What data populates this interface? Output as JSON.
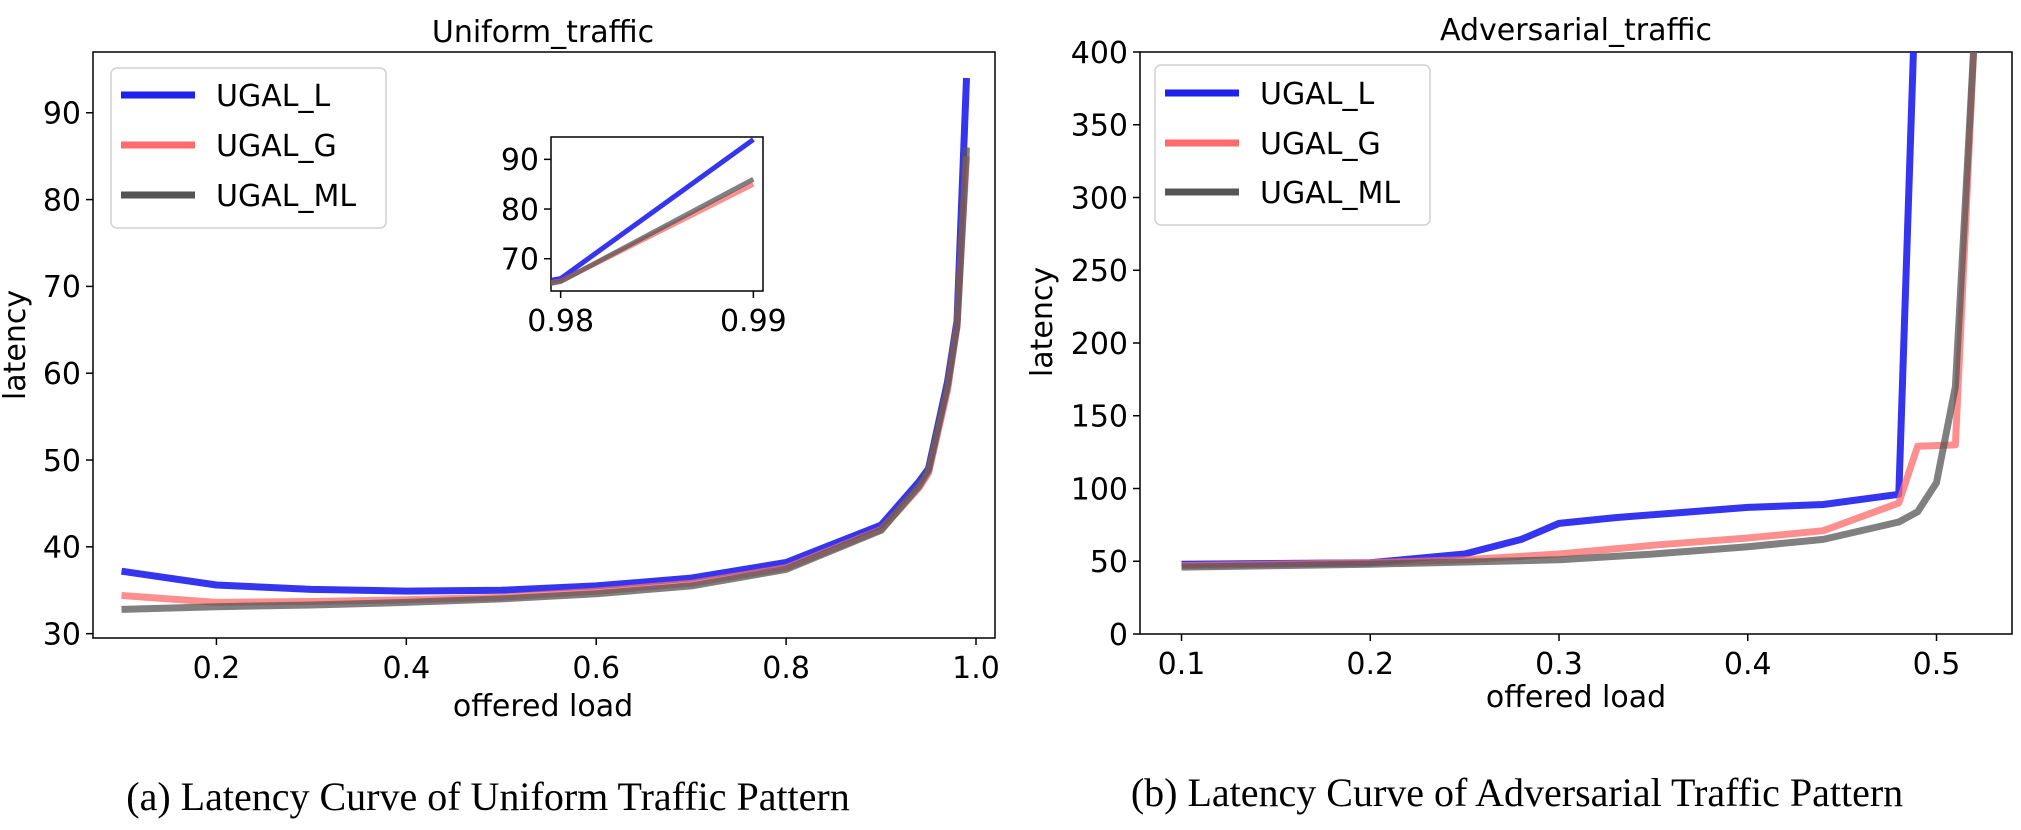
{
  "colors": {
    "UGAL_L": "#1f1fee",
    "UGAL_G": "#ff6a6a",
    "UGAL_ML": "#555555"
  },
  "captions": {
    "a": "(a) Latency Curve of Uniform Traffic Pattern",
    "b": "(b) Latency Curve of Adversarial Traffic Pattern"
  },
  "chart_data": [
    {
      "type": "line",
      "title": "Uniform_traffic",
      "xlabel": "offered load",
      "ylabel": "latency",
      "xlim": [
        0.07,
        1.02
      ],
      "ylim": [
        29.5,
        97
      ],
      "xticks": [
        0.2,
        0.4,
        0.6,
        0.8,
        1.0
      ],
      "xtick_labels": [
        "0.2",
        "0.4",
        "0.6",
        "0.8",
        "1.0"
      ],
      "yticks": [
        30,
        40,
        50,
        60,
        70,
        80,
        90
      ],
      "ytick_labels": [
        "30",
        "40",
        "50",
        "60",
        "70",
        "80",
        "90"
      ],
      "legend": "top-left",
      "series": [
        {
          "name": "UGAL_L",
          "x": [
            0.1,
            0.2,
            0.3,
            0.4,
            0.5,
            0.6,
            0.7,
            0.8,
            0.9,
            0.94,
            0.95,
            0.97,
            0.98,
            0.99
          ],
          "y": [
            37.2,
            35.6,
            35.1,
            34.9,
            35.0,
            35.5,
            36.4,
            38.2,
            42.5,
            47.5,
            49.0,
            59.0,
            66.0,
            94.0
          ]
        },
        {
          "name": "UGAL_G",
          "x": [
            0.1,
            0.2,
            0.3,
            0.4,
            0.5,
            0.6,
            0.7,
            0.8,
            0.9,
            0.94,
            0.95,
            0.97,
            0.98,
            0.99
          ],
          "y": [
            34.4,
            33.6,
            33.7,
            33.9,
            34.2,
            34.9,
            35.8,
            37.6,
            42.0,
            46.8,
            48.5,
            58.0,
            65.5,
            85.0
          ]
        },
        {
          "name": "UGAL_ML",
          "x": [
            0.1,
            0.2,
            0.3,
            0.4,
            0.5,
            0.6,
            0.7,
            0.8,
            0.9,
            0.94,
            0.95,
            0.97,
            0.98,
            0.99
          ],
          "y": [
            32.8,
            33.1,
            33.3,
            33.6,
            34.0,
            34.6,
            35.5,
            37.4,
            41.9,
            47.0,
            48.8,
            58.5,
            65.4,
            86.0
          ]
        }
      ],
      "inset": {
        "xlim": [
          0.9795,
          0.9905
        ],
        "ylim": [
          63.5,
          94.5
        ],
        "xticks": [
          0.98,
          0.99
        ],
        "xtick_labels": [
          "0.98",
          "0.99"
        ],
        "yticks": [
          70,
          80,
          90
        ],
        "ytick_labels": [
          "70",
          "80",
          "90"
        ]
      }
    },
    {
      "type": "line",
      "title": "Adversarial_traffic",
      "xlabel": "offered load",
      "ylabel": "latency",
      "xlim": [
        0.078,
        0.54
      ],
      "ylim": [
        0,
        400
      ],
      "xticks": [
        0.1,
        0.2,
        0.3,
        0.4,
        0.5
      ],
      "xtick_labels": [
        "0.1",
        "0.2",
        "0.3",
        "0.4",
        "0.5"
      ],
      "yticks": [
        0,
        50,
        100,
        150,
        200,
        250,
        300,
        350,
        400
      ],
      "ytick_labels": [
        "0",
        "50",
        "100",
        "150",
        "200",
        "250",
        "300",
        "350",
        "400"
      ],
      "legend": "top-left",
      "series": [
        {
          "name": "UGAL_L",
          "x": [
            0.1,
            0.2,
            0.25,
            0.28,
            0.3,
            0.33,
            0.36,
            0.4,
            0.44,
            0.48,
            0.488
          ],
          "y": [
            48,
            49,
            55,
            65,
            76,
            80,
            83,
            87,
            89,
            96,
            410
          ]
        },
        {
          "name": "UGAL_G",
          "x": [
            0.1,
            0.2,
            0.25,
            0.3,
            0.35,
            0.4,
            0.44,
            0.48,
            0.49,
            0.51,
            0.52
          ],
          "y": [
            47,
            49,
            51,
            55,
            61,
            66,
            71,
            90,
            129,
            130,
            410
          ]
        },
        {
          "name": "UGAL_ML",
          "x": [
            0.1,
            0.2,
            0.3,
            0.35,
            0.4,
            0.44,
            0.48,
            0.49,
            0.5,
            0.51,
            0.52
          ],
          "y": [
            46,
            48,
            51,
            55,
            60,
            65,
            77,
            84,
            104,
            170,
            410
          ]
        }
      ]
    }
  ]
}
